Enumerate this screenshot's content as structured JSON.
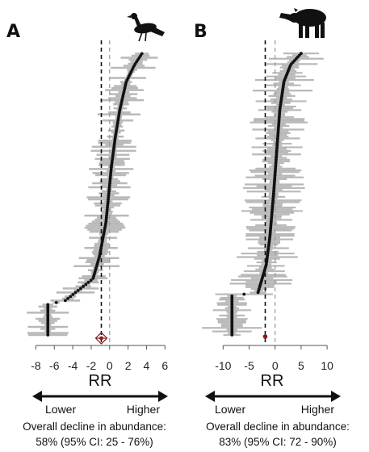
{
  "chart_data": [
    {
      "panel": "A",
      "type": "scatter",
      "panel_label": "A",
      "silhouette_icon": "guan-bird-silhouette-icon",
      "xlabel": "RR",
      "direction_labels": {
        "lower": "Lower",
        "higher": "Higher"
      },
      "xticks": [
        -8,
        -6,
        -4,
        -2,
        0,
        2,
        4,
        6
      ],
      "xlim": [
        -9,
        6.5
      ],
      "reference_lines": {
        "overall_mean": -0.9,
        "zero": 0
      },
      "overall_estimate": -0.9,
      "n_studies": 140,
      "rr_sorted_profile": [
        {
          "q": 0.0,
          "rr": -6.7
        },
        {
          "q": 0.11,
          "rr": -6.7
        },
        {
          "q": 0.12,
          "rr": -4.9
        },
        {
          "q": 0.2,
          "rr": -1.8
        },
        {
          "q": 0.28,
          "rr": -1.1
        },
        {
          "q": 0.4,
          "rr": -0.4
        },
        {
          "q": 0.5,
          "rr": -0.1
        },
        {
          "q": 0.6,
          "rr": 0.2
        },
        {
          "q": 0.7,
          "rr": 0.6
        },
        {
          "q": 0.8,
          "rr": 1.1
        },
        {
          "q": 0.9,
          "rr": 1.8
        },
        {
          "q": 0.96,
          "rr": 2.7
        },
        {
          "q": 1.0,
          "rr": 3.5
        }
      ],
      "ci_halfwidth_range": [
        0.3,
        2.5
      ],
      "summary_line1": "Overall decline in abundance:",
      "summary_line2": "58% (95% CI: 25 - 76%)",
      "colors": {
        "points": "#111111",
        "ci": "#b9b9b9",
        "estimate": "#8b1a1a"
      }
    },
    {
      "panel": "B",
      "type": "scatter",
      "panel_label": "B",
      "silhouette_icon": "tapir-silhouette-icon",
      "xlabel": "RR",
      "direction_labels": {
        "lower": "Lower",
        "higher": "Higher"
      },
      "xticks": [
        -10,
        -5,
        0,
        5,
        10
      ],
      "xlim": [
        -13,
        12
      ],
      "reference_lines": {
        "overall_mean": -1.9,
        "zero": 0
      },
      "overall_estimate": -1.9,
      "n_studies": 160,
      "rr_sorted_profile": [
        {
          "q": 0.0,
          "rr": -8.3
        },
        {
          "q": 0.14,
          "rr": -8.3
        },
        {
          "q": 0.15,
          "rr": -3.3
        },
        {
          "q": 0.25,
          "rr": -1.7
        },
        {
          "q": 0.35,
          "rr": -1.0
        },
        {
          "q": 0.5,
          "rr": -0.3
        },
        {
          "q": 0.65,
          "rr": 0.3
        },
        {
          "q": 0.8,
          "rr": 0.9
        },
        {
          "q": 0.9,
          "rr": 1.7
        },
        {
          "q": 0.96,
          "rr": 3.0
        },
        {
          "q": 1.0,
          "rr": 5.0
        }
      ],
      "ci_halfwidth_range": [
        0.8,
        6.0
      ],
      "summary_line1": "Overall decline in abundance:",
      "summary_line2": "83% (95% CI: 72 - 90%)",
      "colors": {
        "points": "#111111",
        "ci": "#b9b9b9",
        "estimate": "#8b1a1a"
      }
    }
  ]
}
